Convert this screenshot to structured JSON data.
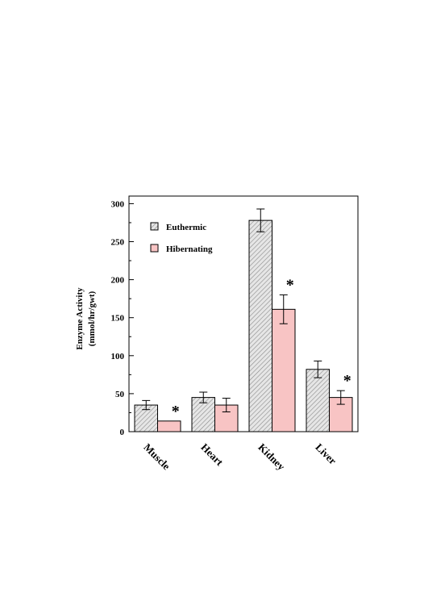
{
  "chart_data": {
    "type": "bar",
    "title": "",
    "xlabel": "",
    "ylabel": "Enzyme Activity",
    "ylabel_units": "(mmol/hr/gwt)",
    "ylim": [
      0,
      310
    ],
    "yticks": [
      "0",
      "50",
      "100",
      "150",
      "200",
      "250",
      "300"
    ],
    "categories": [
      "Muscle",
      "Heart",
      "Kidney",
      "Liver"
    ],
    "series": [
      {
        "name": "Euthermic",
        "values": [
          35,
          45,
          278,
          82
        ],
        "errors": [
          6,
          7,
          15,
          11
        ],
        "fill": "#d8d8d8",
        "hatched": true
      },
      {
        "name": "Hibernating",
        "values": [
          14,
          35,
          161,
          45
        ],
        "errors": [
          0,
          9,
          19,
          9
        ],
        "fill": "#f8c4c4",
        "hatched": false
      }
    ],
    "significance_marker": "*",
    "significant": [
      [
        false,
        true
      ],
      [
        false,
        false
      ],
      [
        false,
        true
      ],
      [
        false,
        true
      ]
    ],
    "legend_position": "top-left",
    "grid": false
  }
}
